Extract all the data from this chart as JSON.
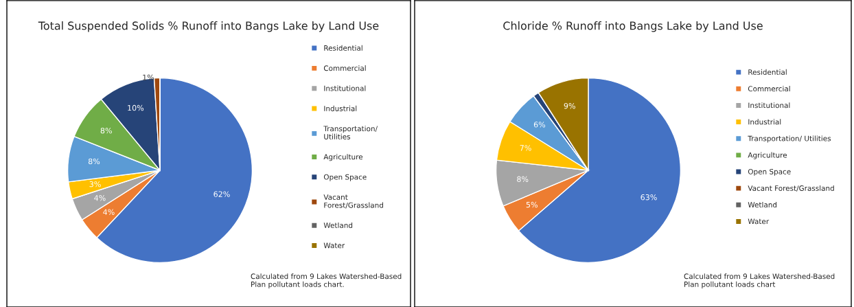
{
  "chart_data": [
    {
      "type": "pie",
      "title": "Total Suspended Solids % Runoff into Bangs Lake by Land Use",
      "categories": [
        "Residential",
        "Commercial",
        "Institutional",
        "Industrial",
        "Transportation/\nUtilities",
        "Agriculture",
        "Open Space",
        "Vacant\nForest/Grassland",
        "Wetland",
        "Water"
      ],
      "values": [
        62,
        4,
        4,
        3,
        8,
        8,
        10,
        1,
        0,
        0
      ],
      "value_labels": [
        "62%",
        "4%",
        "4%",
        "3%",
        "8%",
        "8%",
        "10%",
        "1%",
        null,
        null
      ],
      "colors": [
        "#4472c4",
        "#ed7d31",
        "#a5a5a5",
        "#ffc000",
        "#5b9bd5",
        "#70ad47",
        "#264478",
        "#9e480e",
        "#636363",
        "#997300"
      ],
      "legend": "right",
      "annotations": [
        "Calculated from 9 Lakes Watershed-Based Plan pollutant loads chart."
      ]
    },
    {
      "type": "pie",
      "title": "Chloride % Runoff into Bangs Lake by Land Use",
      "categories": [
        "Residential",
        "Commercial",
        "Institutional",
        "Industrial",
        "Transportation/ Utilities",
        "Agriculture",
        "Open Space",
        "Vacant Forest/Grassland",
        "Wetland",
        "Water"
      ],
      "values": [
        63,
        5,
        8,
        7,
        6,
        0,
        1,
        0,
        0,
        9
      ],
      "value_labels": [
        "63%",
        "5%",
        "8%",
        "7%",
        "6%",
        null,
        null,
        null,
        null,
        "9%"
      ],
      "colors": [
        "#4472c4",
        "#ed7d31",
        "#a5a5a5",
        "#ffc000",
        "#5b9bd5",
        "#70ad47",
        "#264478",
        "#9e480e",
        "#636363",
        "#997300"
      ],
      "legend": "right",
      "annotations": [
        "Calculated from 9 Lakes Watershed-Based Plan pollutant loads chart"
      ]
    }
  ]
}
